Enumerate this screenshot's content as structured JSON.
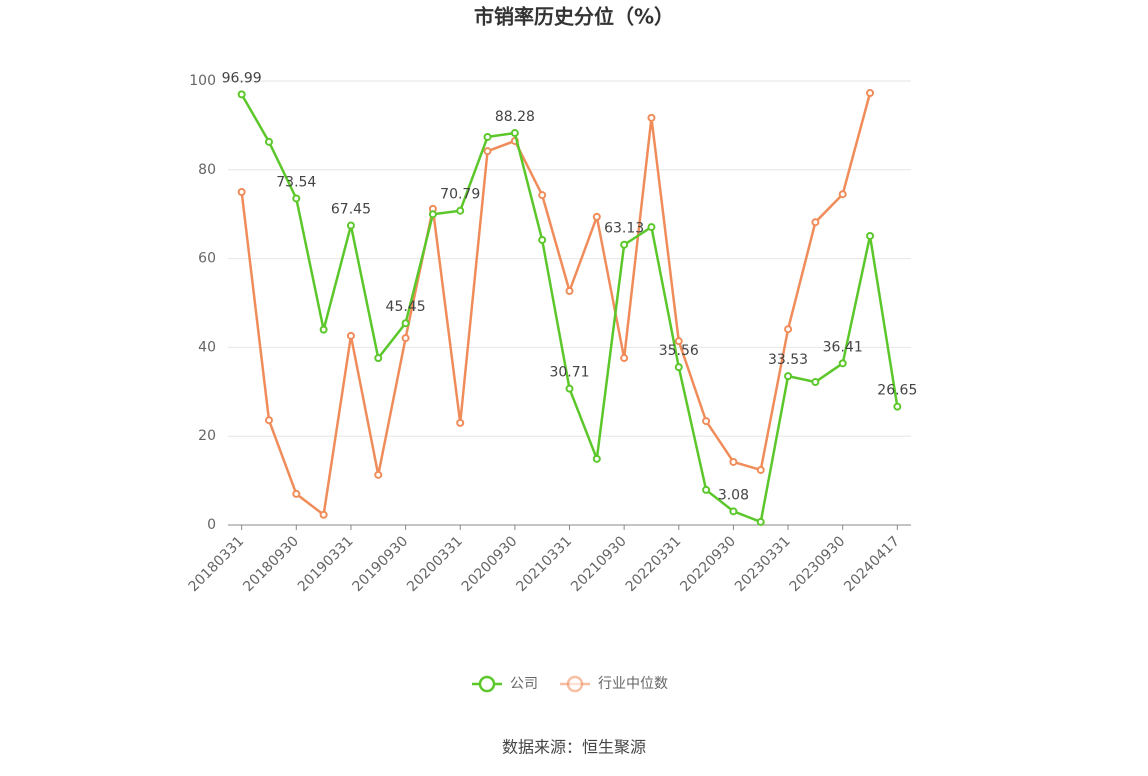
{
  "chart_data": {
    "type": "line",
    "title": "市销率历史分位（%）",
    "source": "数据来源：恒生聚源",
    "categories": [
      "20180331",
      null,
      "20180930",
      null,
      "20190331",
      null,
      "20190930",
      null,
      "20200331",
      null,
      "20200930",
      null,
      "20210331",
      null,
      "20210930",
      null,
      "20220331",
      null,
      "20220930",
      null,
      "20230331",
      null,
      "20230930",
      null,
      "20240417"
    ],
    "series": [
      {
        "name": "公司",
        "color": "#5bc72a",
        "values": [
          96.99,
          86.3,
          73.54,
          44.0,
          67.45,
          37.6,
          45.45,
          70.0,
          70.79,
          87.4,
          88.28,
          64.2,
          30.71,
          14.9,
          63.13,
          67.1,
          35.56,
          7.9,
          3.08,
          0.7,
          33.53,
          32.2,
          36.41,
          65.1,
          26.65
        ],
        "value_labels": [
          "96.99",
          null,
          "73.54",
          null,
          "67.45",
          null,
          "45.45",
          null,
          "70.79",
          null,
          "88.28",
          null,
          "30.71",
          null,
          "63.13",
          null,
          "35.56",
          null,
          "3.08",
          null,
          "33.53",
          null,
          "36.41",
          null,
          "26.65"
        ]
      },
      {
        "name": "行业中位数",
        "color": "#f08c5a",
        "values": [
          75.0,
          23.6,
          7.0,
          2.3,
          42.6,
          11.3,
          42.1,
          71.2,
          23.0,
          84.2,
          86.5,
          74.3,
          52.7,
          69.4,
          37.6,
          91.7,
          41.4,
          23.4,
          14.2,
          12.4,
          44.1,
          68.2,
          74.5,
          97.3,
          null
        ]
      }
    ],
    "ylim": [
      0,
      100
    ],
    "yticks": [
      0,
      20,
      40,
      60,
      80,
      100
    ],
    "grid": true,
    "legend": "bottom"
  }
}
